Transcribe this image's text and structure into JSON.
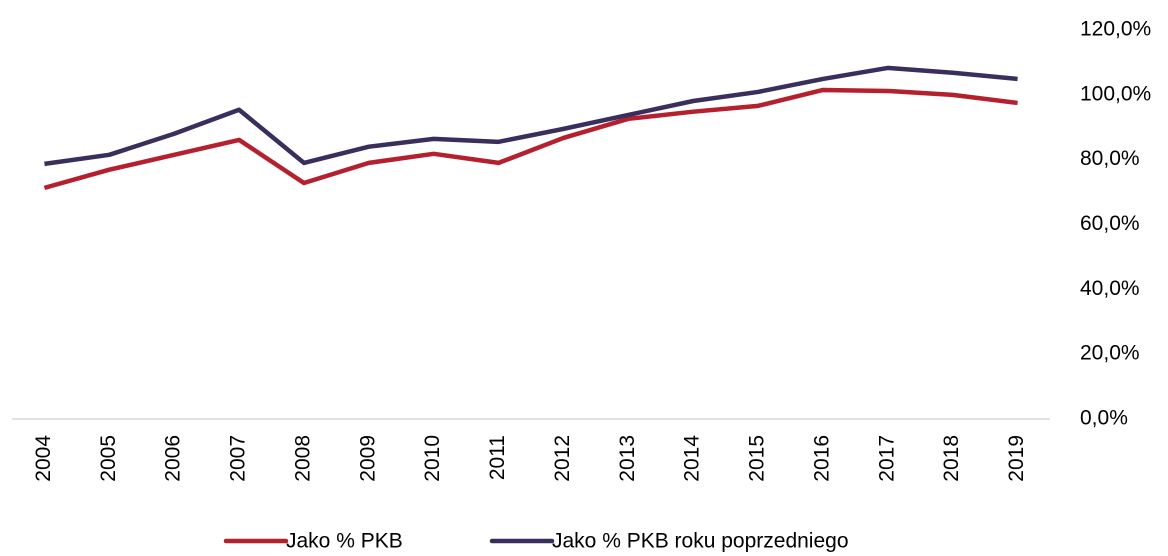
{
  "chart_data": {
    "type": "line",
    "categories": [
      "2004",
      "2005",
      "2006",
      "2007",
      "2008",
      "2009",
      "2010",
      "2011",
      "2012",
      "2013",
      "2014",
      "2015",
      "2016",
      "2017",
      "2018",
      "2019"
    ],
    "series": [
      {
        "name": "Jako % PKB",
        "color": "#b5202e",
        "values": [
          71.3,
          76.9,
          81.5,
          86.1,
          72.8,
          79,
          81.8,
          79,
          86.7,
          92.6,
          94.8,
          96.6,
          101.5,
          101.2,
          100,
          97.5
        ]
      },
      {
        "name": "Jako % PKB roku poprzedniego",
        "color": "#3a2f5c",
        "values": [
          78.7,
          81.5,
          88,
          95.4,
          79,
          84,
          86.4,
          85.5,
          89.5,
          93.8,
          98.1,
          100.9,
          104.9,
          108.3,
          106.8,
          104.9
        ]
      }
    ],
    "ylim": [
      0,
      120
    ],
    "yticks": [
      {
        "value": 0,
        "label": "0,0%"
      },
      {
        "value": 20,
        "label": "20,0%"
      },
      {
        "value": 40,
        "label": "40,0%"
      },
      {
        "value": 60,
        "label": "60,0%"
      },
      {
        "value": 80,
        "label": "80,0%"
      },
      {
        "value": 100,
        "label": "100,0%"
      },
      {
        "value": 120,
        "label": "120,0%"
      }
    ],
    "grid": false,
    "legend": "bottom"
  }
}
